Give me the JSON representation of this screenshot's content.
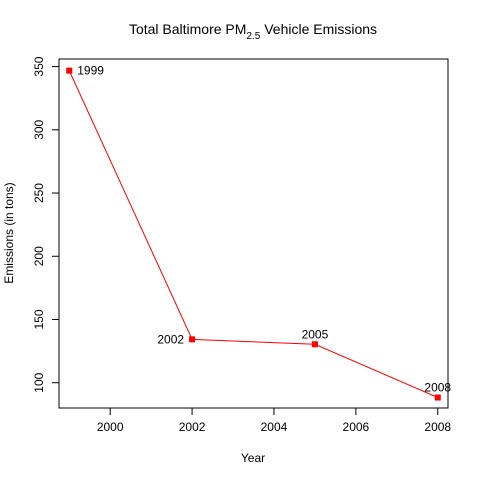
{
  "chart_data": {
    "type": "line",
    "title": "Total Baltimore PM",
    "title_subscript": "2.5",
    "title_suffix": " Vehicle Emissions",
    "xlabel": "Year",
    "ylabel": "Emissions (in tons)",
    "xlim": [
      1998.75,
      2008.25
    ],
    "ylim": [
      80,
      356
    ],
    "x_ticks": [
      2000,
      2002,
      2004,
      2006,
      2008
    ],
    "y_ticks": [
      100,
      150,
      200,
      250,
      300,
      350
    ],
    "grid": false,
    "series": [
      {
        "color": "#ff0000",
        "points": [
          {
            "x": 1999,
            "y": 346.8,
            "label": "1999"
          },
          {
            "x": 2002,
            "y": 134.3,
            "label": "2002"
          },
          {
            "x": 2005,
            "y": 130.4,
            "label": "2005"
          },
          {
            "x": 2008,
            "y": 88.3,
            "label": "2008"
          }
        ]
      }
    ]
  }
}
